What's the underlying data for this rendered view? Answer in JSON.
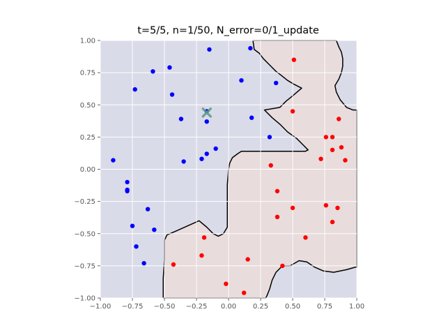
{
  "chart_data": {
    "type": "scatter",
    "title": "t=5/5, n=1/50, N_error=0/1_update",
    "xlim": [
      -1.0,
      1.0
    ],
    "ylim": [
      -1.0,
      1.0
    ],
    "x_ticks": [
      "−1.00",
      "−0.75",
      "−0.50",
      "−0.25",
      "0.00",
      "0.25",
      "0.50",
      "0.75",
      "1.00"
    ],
    "y_ticks": [
      "−1.00",
      "−0.75",
      "−0.50",
      "−0.25",
      "0.00",
      "0.25",
      "0.50",
      "0.75",
      "1.00"
    ],
    "grid": true,
    "colors": {
      "background_region": "#dadbe8",
      "class_region": "#e8dcdc",
      "boundary": "#000000",
      "grid": "#ffffff",
      "class_a": "#0000ff",
      "class_b": "#ff0000",
      "marker": "#5a9a8a"
    },
    "series": [
      {
        "color": "#0000ff",
        "points": [
          [
            -0.15,
            0.93
          ],
          [
            0.17,
            0.94
          ],
          [
            -0.59,
            0.76
          ],
          [
            -0.46,
            0.79
          ],
          [
            -0.73,
            0.62
          ],
          [
            -0.44,
            0.58
          ],
          [
            0.1,
            0.69
          ],
          [
            0.37,
            0.67
          ],
          [
            -0.37,
            0.39
          ],
          [
            -0.17,
            0.37
          ],
          [
            0.18,
            0.4
          ],
          [
            0.32,
            0.25
          ],
          [
            -0.17,
            0.45
          ],
          [
            -0.1,
            0.16
          ],
          [
            -0.17,
            0.12
          ],
          [
            -0.21,
            0.08
          ],
          [
            -0.9,
            0.07
          ],
          [
            -0.35,
            0.06
          ],
          [
            -0.79,
            -0.1
          ],
          [
            -0.79,
            -0.16
          ],
          [
            -0.79,
            -0.17
          ],
          [
            -0.63,
            -0.31
          ],
          [
            -0.75,
            -0.44
          ],
          [
            -0.58,
            -0.47
          ],
          [
            -0.72,
            -0.6
          ],
          [
            -0.66,
            -0.73
          ]
        ]
      },
      {
        "color": "#ff0000",
        "points": [
          [
            0.51,
            0.85
          ],
          [
            0.5,
            0.45
          ],
          [
            0.86,
            0.39
          ],
          [
            0.76,
            0.25
          ],
          [
            0.81,
            0.25
          ],
          [
            0.88,
            0.17
          ],
          [
            0.81,
            0.15
          ],
          [
            0.72,
            0.08
          ],
          [
            0.91,
            0.07
          ],
          [
            0.33,
            0.03
          ],
          [
            0.38,
            -0.17
          ],
          [
            0.76,
            -0.28
          ],
          [
            0.85,
            -0.3
          ],
          [
            0.5,
            -0.3
          ],
          [
            0.38,
            -0.37
          ],
          [
            0.81,
            -0.41
          ],
          [
            -0.19,
            -0.53
          ],
          [
            0.6,
            -0.53
          ],
          [
            -0.21,
            -0.67
          ],
          [
            0.15,
            -0.7
          ],
          [
            -0.43,
            -0.74
          ],
          [
            0.42,
            -0.75
          ],
          [
            -0.02,
            -0.89
          ],
          [
            0.12,
            -0.96
          ]
        ]
      }
    ],
    "highlight": [
      -0.17,
      0.44
    ],
    "regions": [
      [
        [
          0.19,
          1.0
        ],
        [
          0.2,
          0.93
        ],
        [
          0.24,
          0.9
        ],
        [
          0.27,
          0.86
        ],
        [
          0.3,
          0.83
        ],
        [
          0.33,
          0.8
        ],
        [
          0.37,
          0.76
        ],
        [
          0.41,
          0.73
        ],
        [
          0.46,
          0.69
        ],
        [
          0.51,
          0.66
        ],
        [
          0.57,
          0.63
        ],
        [
          0.5,
          0.57
        ],
        [
          0.45,
          0.53
        ],
        [
          0.4,
          0.48
        ],
        [
          0.28,
          0.46
        ],
        [
          0.34,
          0.4
        ],
        [
          0.4,
          0.35
        ],
        [
          0.46,
          0.29
        ],
        [
          0.53,
          0.24
        ],
        [
          0.58,
          0.19
        ],
        [
          0.62,
          0.15
        ],
        [
          0.6,
          0.14
        ],
        [
          0.1,
          0.14
        ],
        [
          0.07,
          0.12
        ],
        [
          0.03,
          0.09
        ],
        [
          0.01,
          0.05
        ],
        [
          0.0,
          0.0
        ],
        [
          -0.01,
          -0.12
        ],
        [
          -0.01,
          -0.3
        ],
        [
          -0.01,
          -0.45
        ],
        [
          -0.04,
          -0.5
        ],
        [
          -0.08,
          -0.52
        ],
        [
          -0.12,
          -0.5
        ],
        [
          -0.17,
          -0.45
        ],
        [
          -0.23,
          -0.4
        ],
        [
          -0.32,
          -0.44
        ],
        [
          -0.41,
          -0.48
        ],
        [
          -0.48,
          -0.51
        ],
        [
          -0.5,
          -0.55
        ],
        [
          -0.5,
          -0.7
        ],
        [
          -0.51,
          -0.85
        ],
        [
          -0.51,
          -1.0
        ],
        [
          0.29,
          -1.0
        ],
        [
          0.3,
          -0.98
        ],
        [
          0.32,
          -0.93
        ],
        [
          0.34,
          -0.86
        ],
        [
          0.37,
          -0.8
        ],
        [
          0.42,
          -0.75
        ],
        [
          0.48,
          -0.75
        ],
        [
          0.55,
          -0.71
        ],
        [
          0.61,
          -0.72
        ],
        [
          0.67,
          -0.76
        ],
        [
          0.74,
          -0.79
        ],
        [
          0.82,
          -0.8
        ],
        [
          0.92,
          -0.78
        ],
        [
          0.99,
          -0.76
        ],
        [
          1.0,
          -0.76
        ],
        [
          1.0,
          0.46
        ],
        [
          0.97,
          0.46
        ],
        [
          0.92,
          0.48
        ],
        [
          0.87,
          0.54
        ],
        [
          0.84,
          0.6
        ],
        [
          0.83,
          0.65
        ],
        [
          0.86,
          0.7
        ],
        [
          0.88,
          0.75
        ],
        [
          0.89,
          0.8
        ],
        [
          0.89,
          0.86
        ],
        [
          0.88,
          0.91
        ],
        [
          0.86,
          0.95
        ],
        [
          0.84,
          1.0
        ]
      ]
    ]
  }
}
